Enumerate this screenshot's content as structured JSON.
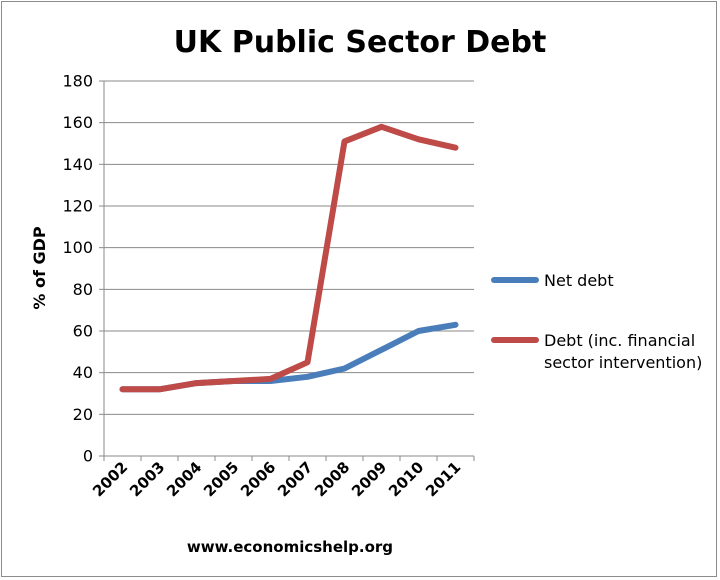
{
  "chart_data": {
    "type": "line",
    "title": "UK Public Sector Debt",
    "xlabel": "",
    "ylabel": "% of GDP",
    "ylim": [
      0,
      180
    ],
    "yticks": [
      0,
      20,
      40,
      60,
      80,
      100,
      120,
      140,
      160,
      180
    ],
    "categories": [
      "2002",
      "2003",
      "2004",
      "2005",
      "2006",
      "2007",
      "2008",
      "2009",
      "2010",
      "2011"
    ],
    "grid": "horizontal",
    "legend_position": "right",
    "series": [
      {
        "name": "Net debt",
        "color": "#4a7ebb",
        "values": [
          32,
          32,
          35,
          36,
          36,
          38,
          42,
          51,
          60,
          63
        ]
      },
      {
        "name": "Debt (inc. financial sector intervention)",
        "color": "#be4b48",
        "values": [
          32,
          32,
          35,
          36,
          37,
          45,
          151,
          158,
          152,
          148
        ]
      }
    ],
    "legend_lines": [
      [
        "Net debt"
      ],
      [
        "Debt (inc. financial",
        "sector intervention)"
      ]
    ],
    "source": "www.economicshelp.org"
  }
}
